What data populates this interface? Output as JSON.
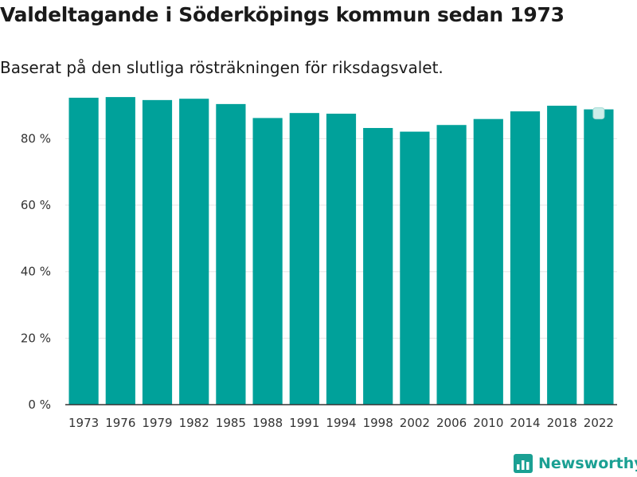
{
  "title": "Valdeltagande i Söderköpings kommun sedan 1973",
  "subtitle": "Baserat på den slutliga rösträkningen för riksdagsvalet.",
  "brand": {
    "name": "Newsworthy"
  },
  "colors": {
    "bar": "#00a19a",
    "grid": "#e6e6e6",
    "axis": "#333333",
    "brand": "#1aa093"
  },
  "chart_data": {
    "type": "bar",
    "title": "Valdeltagande i Söderköpings kommun sedan 1973",
    "subtitle": "Baserat på den slutliga rösträkningen för riksdagsvalet.",
    "xlabel": "",
    "ylabel": "",
    "categories": [
      "1973",
      "1976",
      "1979",
      "1982",
      "1985",
      "1988",
      "1991",
      "1994",
      "1998",
      "2002",
      "2006",
      "2010",
      "2014",
      "2018",
      "2022"
    ],
    "values": [
      92.3,
      92.5,
      91.6,
      92.0,
      90.4,
      86.2,
      87.7,
      87.5,
      83.2,
      82.1,
      84.1,
      85.9,
      88.2,
      89.9,
      88.8
    ],
    "ylim": [
      0,
      93
    ],
    "yticks": [
      0,
      20,
      40,
      60,
      80
    ],
    "ytick_labels": [
      "0 %",
      "20 %",
      "40 %",
      "60 %",
      "80 %"
    ],
    "grid": true
  }
}
